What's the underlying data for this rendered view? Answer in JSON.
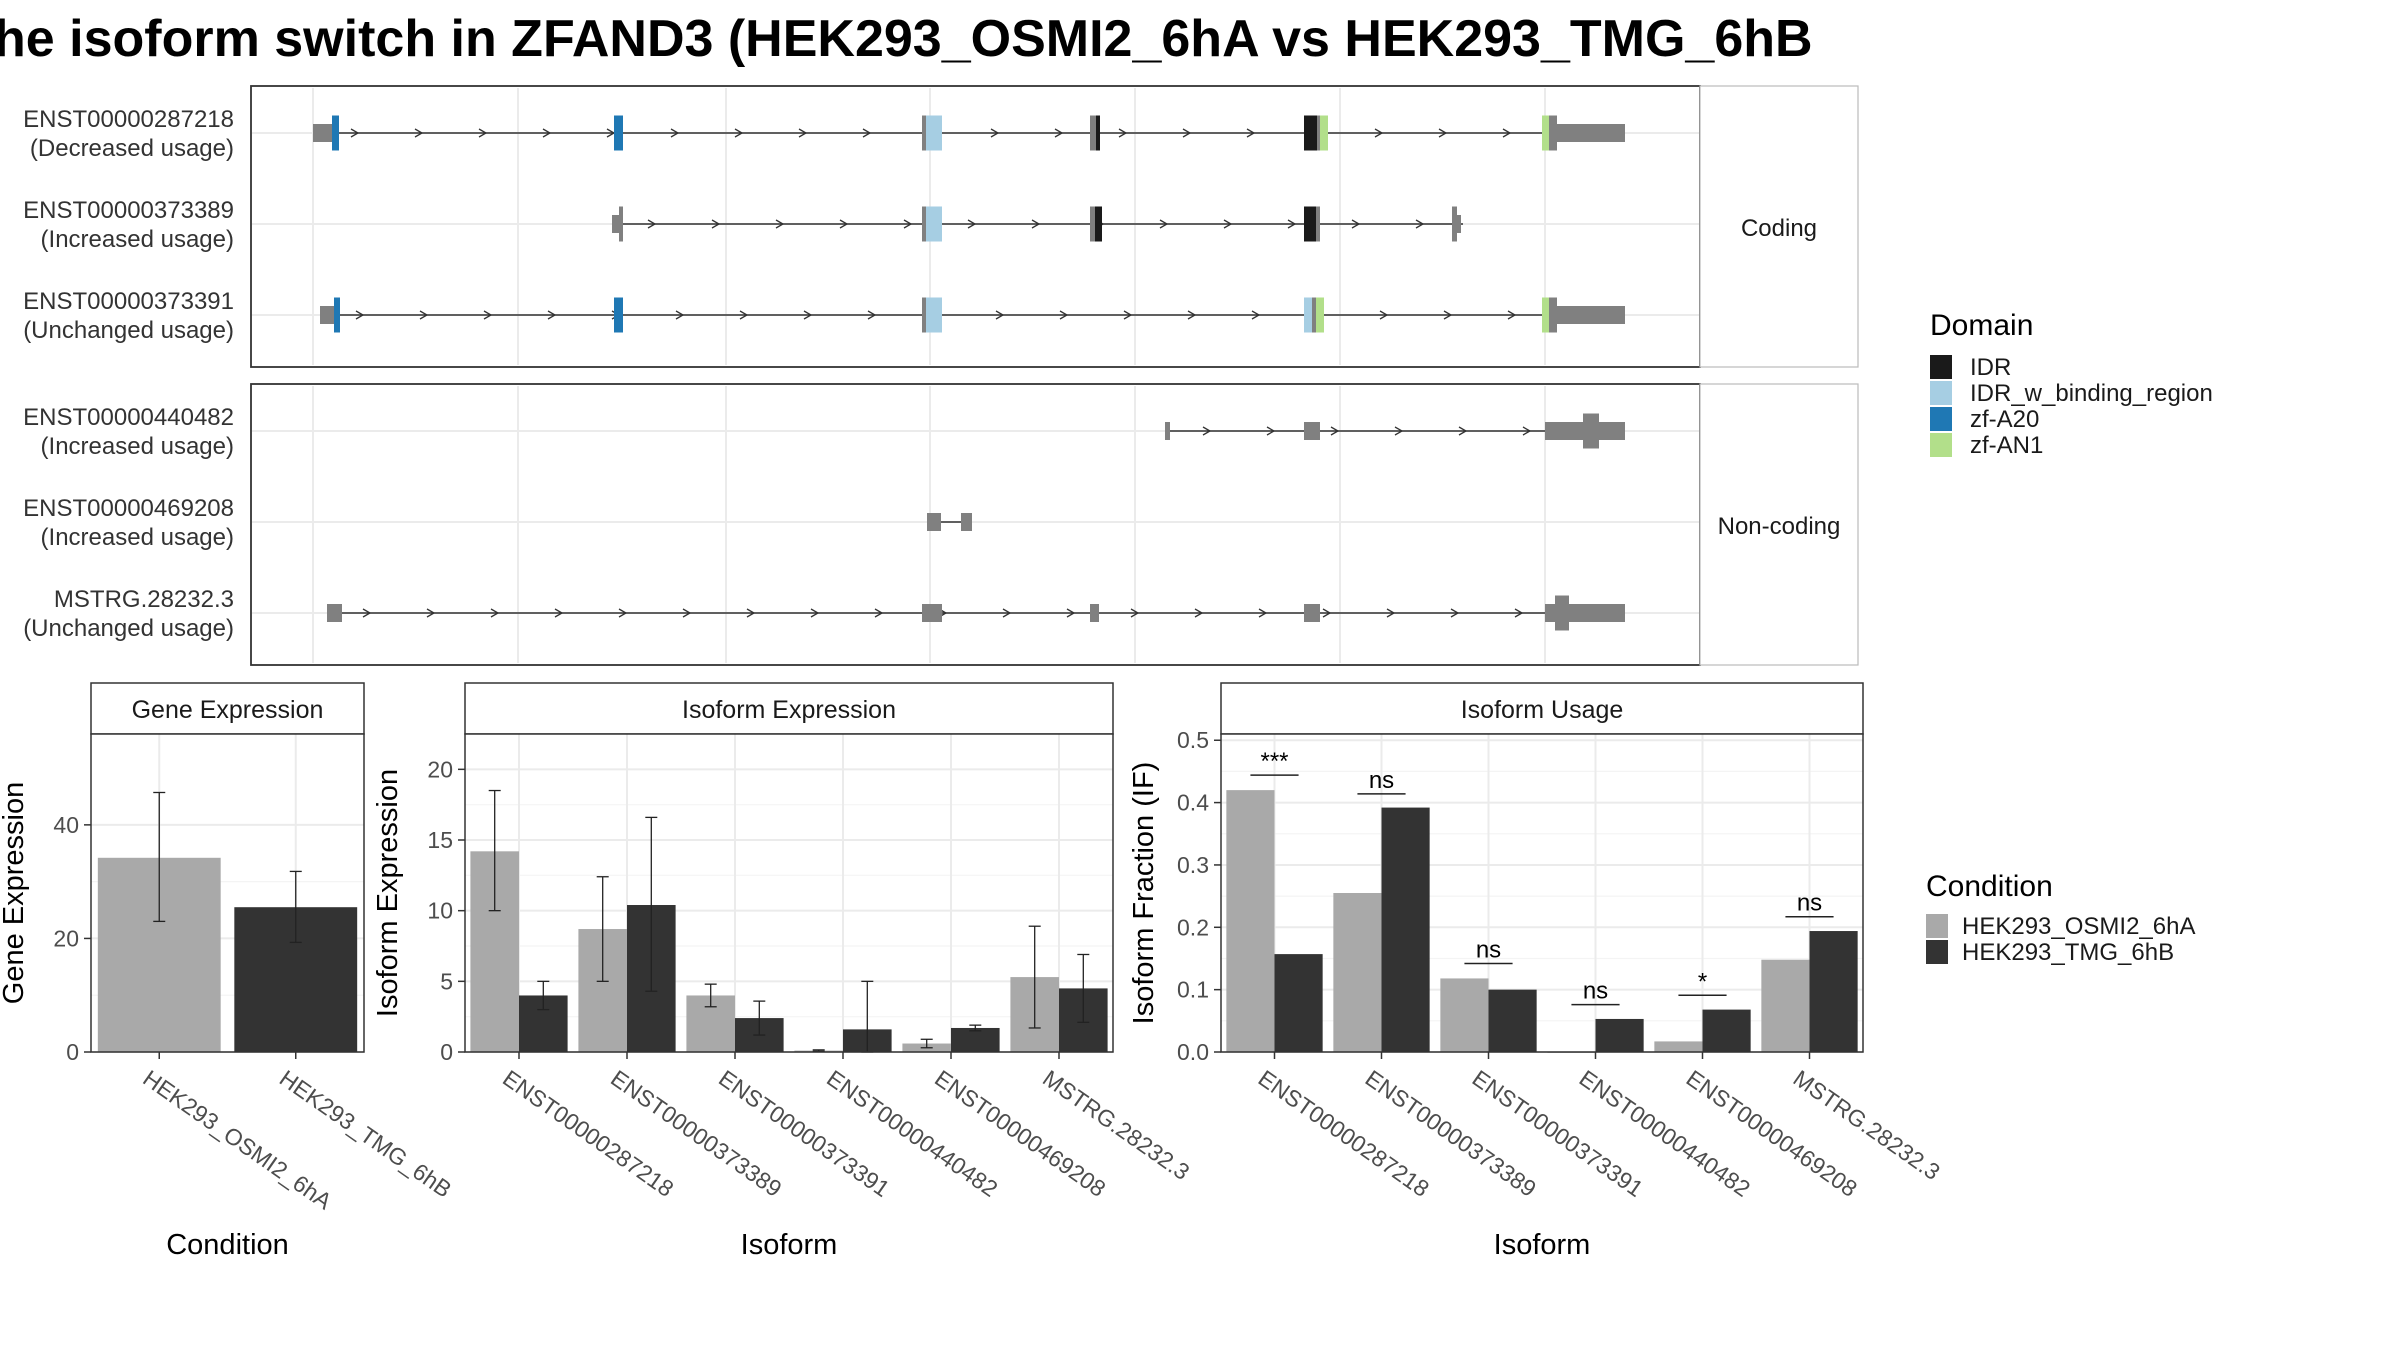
{
  "title": "he isoform switch in ZFAND3 (HEK293_OSMI2_6hA vs HEK293_TMG_6hB",
  "colors": {
    "exon": "#808080",
    "IDR": "#1a1a1a",
    "IDR_w_binding_region": "#a6cee3",
    "zf-A20": "#1f78b4",
    "zf-AN1": "#b2df8a",
    "cond1": "#a9a9a9",
    "cond2": "#333333",
    "panel_bg": "#ffffff",
    "strip_bg": "#ffffff"
  },
  "transcripts": {
    "coding_strip": "Coding",
    "noncoding_strip": "Non-coding",
    "rows": [
      {
        "id": "ENST00000287218",
        "usage": "(Decreased usage)",
        "group": "coding"
      },
      {
        "id": "ENST00000373389",
        "usage": "(Increased usage)",
        "group": "coding"
      },
      {
        "id": "ENST00000373391",
        "usage": "(Unchanged usage)",
        "group": "coding"
      },
      {
        "id": "ENST00000440482",
        "usage": "(Increased usage)",
        "group": "noncoding"
      },
      {
        "id": "ENST00000469208",
        "usage": "(Increased usage)",
        "group": "noncoding"
      },
      {
        "id": "MSTRG.28232.3",
        "usage": "(Unchanged usage)",
        "group": "noncoding"
      }
    ]
  },
  "legend_domain": {
    "title": "Domain",
    "items": [
      "IDR",
      "IDR_w_binding_region",
      "zf-A20",
      "zf-AN1"
    ]
  },
  "legend_condition": {
    "title": "Condition",
    "items": [
      "HEK293_OSMI2_6hA",
      "HEK293_TMG_6hB"
    ]
  },
  "chart_data": [
    {
      "type": "bar",
      "strip": "Gene Expression",
      "xlabel": "Condition",
      "ylabel": "Gene Expression",
      "ylim": [
        0,
        56
      ],
      "yticks": [
        0,
        20,
        40
      ],
      "categories": [
        "HEK293_OSMI2_6hA",
        "HEK293_TMG_6hB"
      ],
      "values": [
        34.2,
        25.5
      ],
      "errors": [
        [
          23,
          45.7
        ],
        [
          19.3,
          31.8
        ]
      ]
    },
    {
      "type": "bar",
      "strip": "Isoform Expression",
      "xlabel": "Isoform",
      "ylabel": "Isoform Expression",
      "ylim": [
        0,
        22.5
      ],
      "yticks": [
        0,
        5,
        10,
        15,
        20
      ],
      "categories": [
        "ENST00000287218",
        "ENST00000373389",
        "ENST00000373391",
        "ENST00000440482",
        "ENST00000469208",
        "MSTRG.28232.3"
      ],
      "series": [
        {
          "name": "HEK293_OSMI2_6hA",
          "values": [
            14.2,
            8.7,
            4.0,
            0.1,
            0.6,
            5.3
          ],
          "errors": [
            [
              10.0,
              18.5
            ],
            [
              5.0,
              12.4
            ],
            [
              3.2,
              4.8
            ],
            [
              0.05,
              0.15
            ],
            [
              0.3,
              0.9
            ],
            [
              1.7,
              8.9
            ]
          ]
        },
        {
          "name": "HEK293_TMG_6hB",
          "values": [
            4.0,
            10.4,
            2.4,
            1.6,
            1.7,
            4.5
          ],
          "errors": [
            [
              3.0,
              5.0
            ],
            [
              4.3,
              16.6
            ],
            [
              1.2,
              3.6
            ],
            [
              0,
              5.0
            ],
            [
              1.5,
              1.9
            ],
            [
              2.1,
              6.9
            ]
          ]
        }
      ]
    },
    {
      "type": "bar",
      "strip": "Isoform Usage",
      "xlabel": "Isoform",
      "ylabel": "Isoform Fraction (IF)",
      "ylim": [
        0,
        0.51
      ],
      "yticks": [
        0.0,
        0.1,
        0.2,
        0.3,
        0.4,
        0.5
      ],
      "ytick_labels": [
        "0.0",
        "0.1",
        "0.2",
        "0.3",
        "0.4",
        "0.5"
      ],
      "categories": [
        "ENST00000287218",
        "ENST00000373389",
        "ENST00000373391",
        "ENST00000440482",
        "ENST00000469208",
        "MSTRG.28232.3"
      ],
      "series": [
        {
          "name": "HEK293_OSMI2_6hA",
          "values": [
            0.42,
            0.255,
            0.118,
            0.0,
            0.017,
            0.148
          ]
        },
        {
          "name": "HEK293_TMG_6hB",
          "values": [
            0.157,
            0.392,
            0.1,
            0.053,
            0.068,
            0.194
          ]
        }
      ],
      "significance": [
        {
          "label": "***",
          "y": 0.444
        },
        {
          "label": "ns",
          "y": 0.414
        },
        {
          "label": "ns",
          "y": 0.142
        },
        {
          "label": "ns",
          "y": 0.076
        },
        {
          "label": "*",
          "y": 0.091
        },
        {
          "label": "ns",
          "y": 0.217
        }
      ]
    }
  ]
}
